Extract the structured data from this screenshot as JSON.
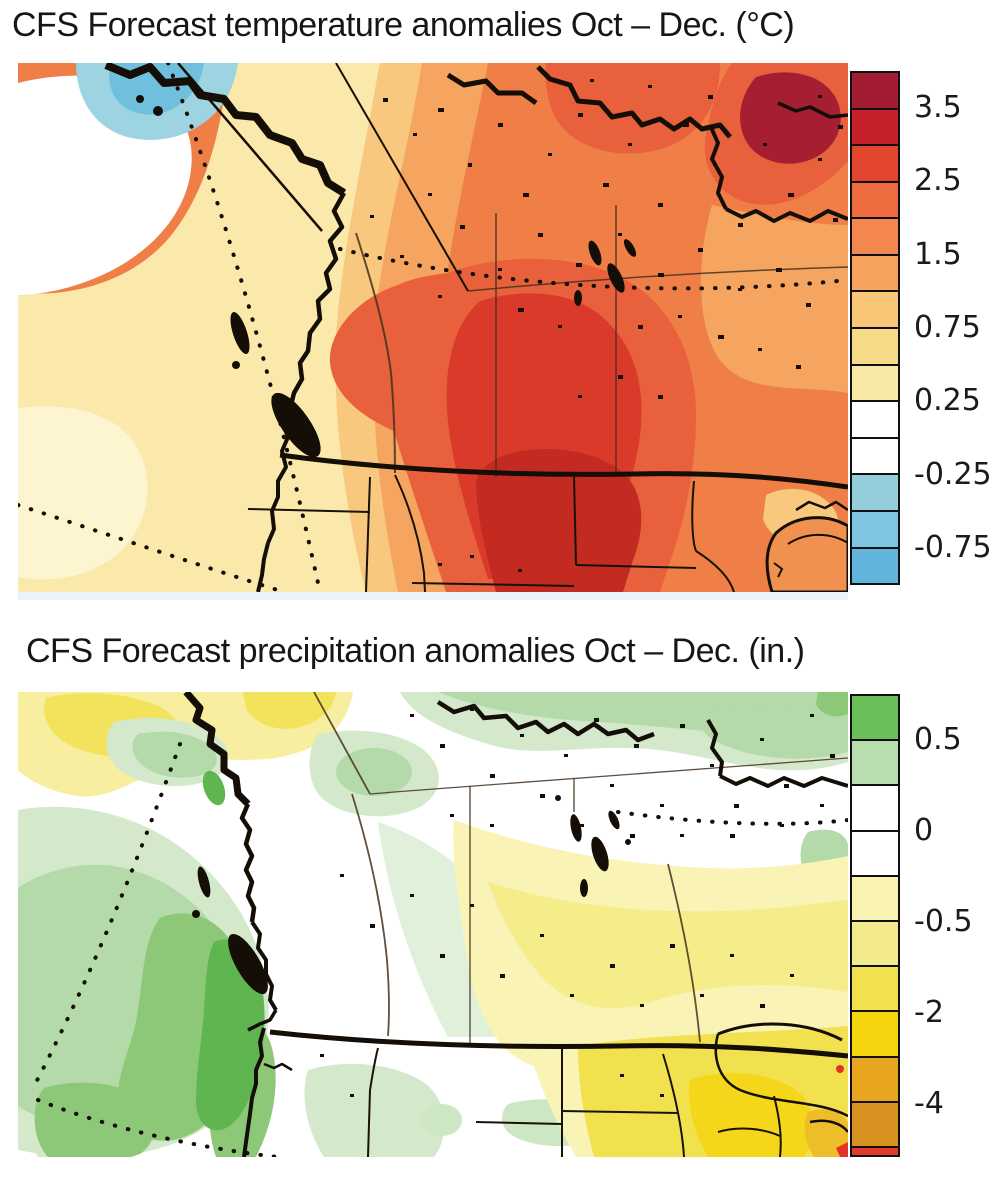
{
  "panels": [
    {
      "id": "temperature",
      "title": "CFS Forecast temperature anomalies Oct – Dec. (°C)",
      "colorbar": {
        "orientation": "vertical",
        "segments": [
          {
            "color": "#A21D33",
            "h": 1
          },
          {
            "color": "#C42129",
            "h": 1
          },
          {
            "color": "#E2462F",
            "h": 1
          },
          {
            "color": "#ED6B3F",
            "h": 1
          },
          {
            "color": "#F4874F",
            "h": 1
          },
          {
            "color": "#F7A360",
            "h": 1
          },
          {
            "color": "#F9C678",
            "h": 1
          },
          {
            "color": "#F7DA88",
            "h": 1
          },
          {
            "color": "#F9E9A6",
            "h": 1
          },
          {
            "color": "#FFFFFF",
            "h": 1
          },
          {
            "color": "#FFFFFF",
            "h": 1
          },
          {
            "color": "#95CEDB",
            "h": 1
          },
          {
            "color": "#7EC5E1",
            "h": 1
          },
          {
            "color": "#62B5DA",
            "h": 1
          }
        ],
        "ticks": [
          {
            "label": "3.5",
            "boundary": 1
          },
          {
            "label": "2.5",
            "boundary": 3
          },
          {
            "label": "1.5",
            "boundary": 5
          },
          {
            "label": "0.75",
            "boundary": 7
          },
          {
            "label": "0.25",
            "boundary": 9
          },
          {
            "label": "-0.25",
            "boundary": 11
          },
          {
            "label": "-0.75",
            "boundary": 13
          }
        ]
      }
    },
    {
      "id": "precipitation",
      "title": "CFS Forecast precipitation anomalies Oct – Dec. (in.)",
      "colorbar": {
        "orientation": "vertical",
        "segments": [
          {
            "color": "#6CBE58",
            "h": 1
          },
          {
            "color": "#B8DDAE",
            "h": 1
          },
          {
            "color": "#FFFFFF",
            "h": 1
          },
          {
            "color": "#FFFFFF",
            "h": 1
          },
          {
            "color": "#F8F3B3",
            "h": 1
          },
          {
            "color": "#F3EA8C",
            "h": 1
          },
          {
            "color": "#F2E04F",
            "h": 1
          },
          {
            "color": "#F5D60E",
            "h": 1
          },
          {
            "color": "#E8A51F",
            "h": 1
          },
          {
            "color": "#D9921F",
            "h": 1
          },
          {
            "color": "#E23A28",
            "h": 0.16
          }
        ],
        "ticks": [
          {
            "label": "0.5",
            "boundary": 1
          },
          {
            "label": "0",
            "boundary": 3
          },
          {
            "label": "-0.5",
            "boundary": 5
          },
          {
            "label": "-2",
            "boundary": 7
          },
          {
            "label": "-4",
            "boundary": 9
          }
        ]
      }
    }
  ]
}
